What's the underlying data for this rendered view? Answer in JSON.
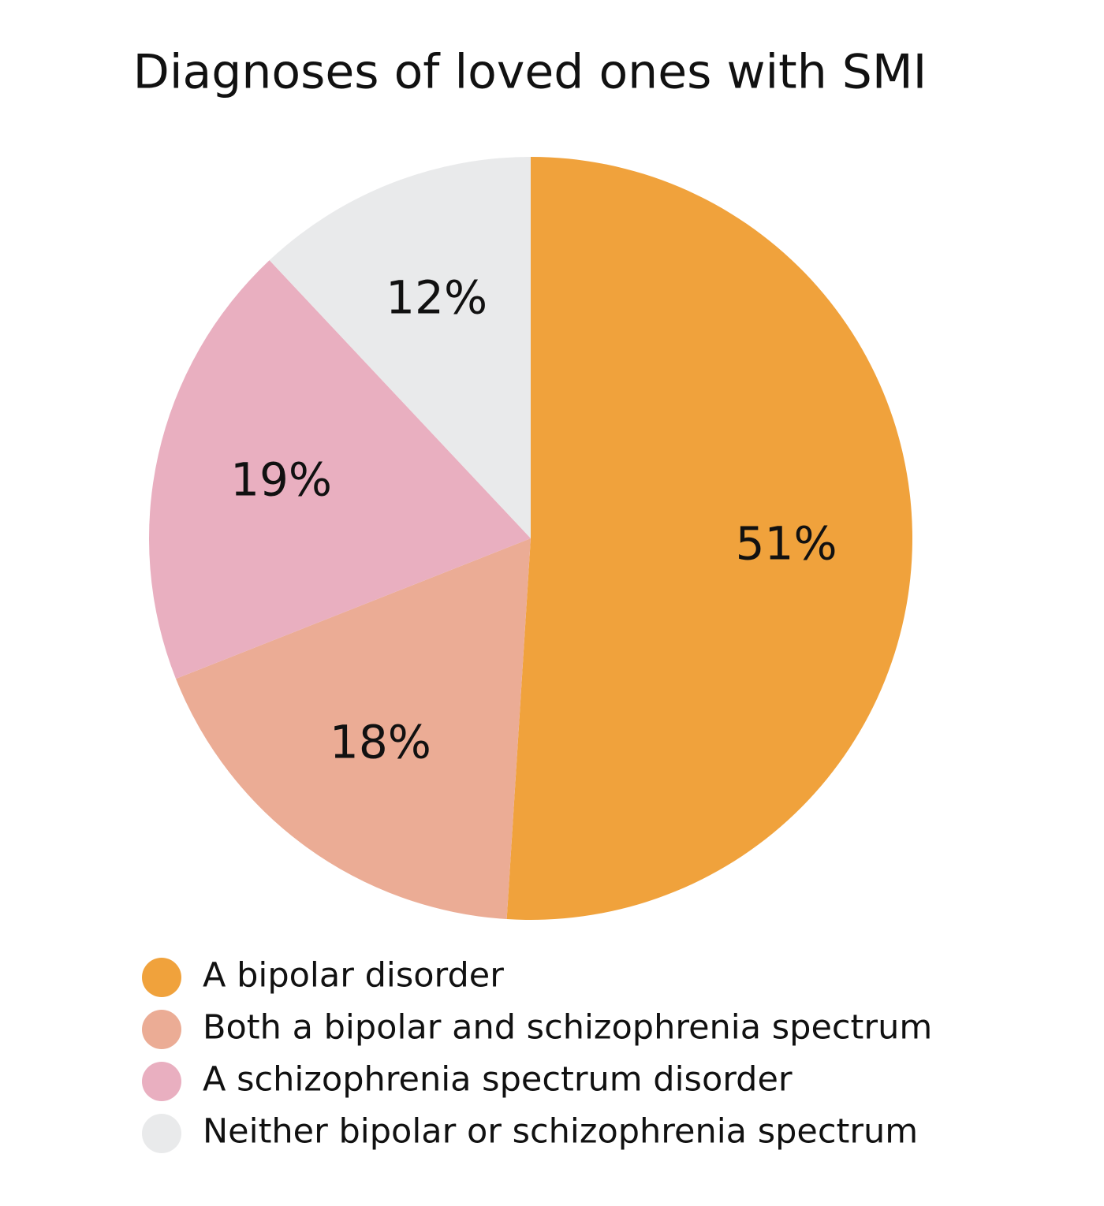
{
  "chart_data": {
    "type": "pie",
    "title": "Diagnoses of loved ones with SMI",
    "categories": [
      "A bipolar disorder",
      "Both a bipolar and schizophrenia spectrum",
      "A schizophrenia spectrum disorder",
      "Neither bipolar or schizophrenia spectrum"
    ],
    "values": [
      51,
      18,
      19,
      12
    ],
    "value_labels": [
      "51%",
      "18%",
      "19%",
      "12%"
    ],
    "colors": [
      "#f0a23c",
      "#ebac95",
      "#e9afc0",
      "#e9eaeb"
    ]
  }
}
